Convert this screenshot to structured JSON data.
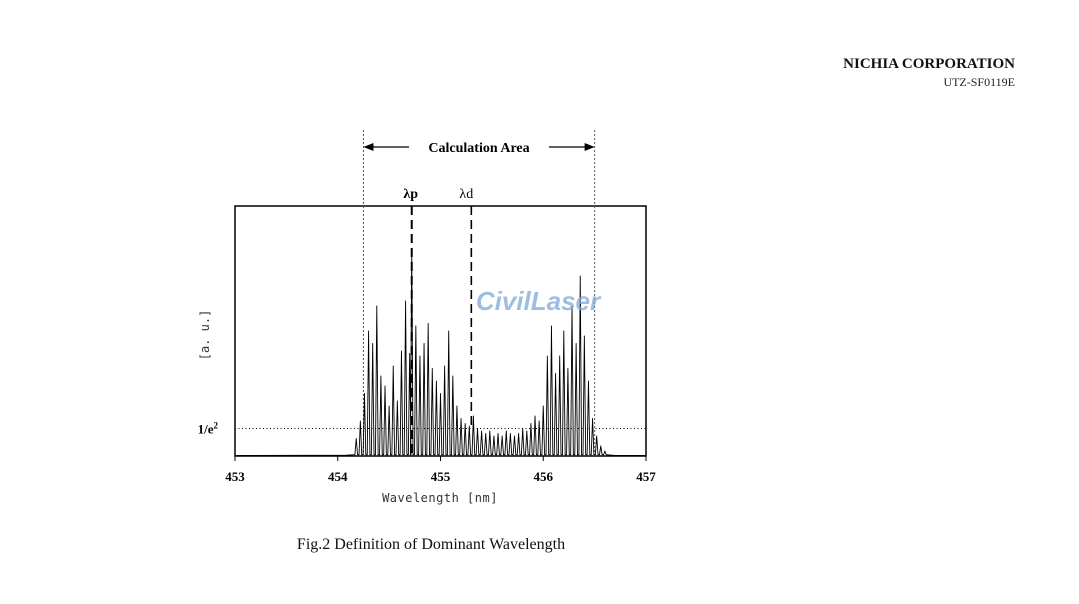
{
  "header": {
    "company": "NICHIA CORPORATION",
    "doc_id": "UTZ-SF0119E"
  },
  "caption": "Fig.2 Definition of Dominant Wavelength",
  "watermark": "CivilLaser",
  "colors": {
    "line": "#000000",
    "watermark": "#7fa8d8"
  },
  "chart_data": {
    "type": "line",
    "title": "",
    "xlabel": "Wavelength [nm]",
    "ylabel": "[a. u.]",
    "xlim": [
      453,
      457
    ],
    "ylim": [
      0,
      1.0
    ],
    "x_ticks": [
      453,
      454,
      455,
      456,
      457
    ],
    "grid": false,
    "annotations": {
      "calculation_area_label": "Calculation Area",
      "calculation_area_range": [
        454.25,
        456.5
      ],
      "lambda_p_label": "λp",
      "lambda_p": 454.72,
      "lambda_d_label": "λd",
      "lambda_d": 455.3,
      "threshold_label": "1/e²",
      "threshold_value": 0.11
    },
    "peaks": [
      {
        "x": 454.18,
        "y": 0.07
      },
      {
        "x": 454.22,
        "y": 0.14
      },
      {
        "x": 454.26,
        "y": 0.25
      },
      {
        "x": 454.3,
        "y": 0.5
      },
      {
        "x": 454.34,
        "y": 0.45
      },
      {
        "x": 454.38,
        "y": 0.6
      },
      {
        "x": 454.42,
        "y": 0.32
      },
      {
        "x": 454.46,
        "y": 0.28
      },
      {
        "x": 454.5,
        "y": 0.2
      },
      {
        "x": 454.54,
        "y": 0.36
      },
      {
        "x": 454.58,
        "y": 0.22
      },
      {
        "x": 454.62,
        "y": 0.42
      },
      {
        "x": 454.66,
        "y": 0.62
      },
      {
        "x": 454.7,
        "y": 0.41
      },
      {
        "x": 454.72,
        "y": 0.82
      },
      {
        "x": 454.76,
        "y": 0.52
      },
      {
        "x": 454.8,
        "y": 0.4
      },
      {
        "x": 454.84,
        "y": 0.45
      },
      {
        "x": 454.88,
        "y": 0.53
      },
      {
        "x": 454.92,
        "y": 0.35
      },
      {
        "x": 454.96,
        "y": 0.3
      },
      {
        "x": 455.0,
        "y": 0.25
      },
      {
        "x": 455.04,
        "y": 0.36
      },
      {
        "x": 455.08,
        "y": 0.5
      },
      {
        "x": 455.12,
        "y": 0.32
      },
      {
        "x": 455.16,
        "y": 0.2
      },
      {
        "x": 455.2,
        "y": 0.15
      },
      {
        "x": 455.24,
        "y": 0.13
      },
      {
        "x": 455.28,
        "y": 0.12
      },
      {
        "x": 455.32,
        "y": 0.16
      },
      {
        "x": 455.36,
        "y": 0.11
      },
      {
        "x": 455.4,
        "y": 0.1
      },
      {
        "x": 455.44,
        "y": 0.09
      },
      {
        "x": 455.48,
        "y": 0.1
      },
      {
        "x": 455.52,
        "y": 0.08
      },
      {
        "x": 455.56,
        "y": 0.09
      },
      {
        "x": 455.6,
        "y": 0.08
      },
      {
        "x": 455.64,
        "y": 0.1
      },
      {
        "x": 455.68,
        "y": 0.09
      },
      {
        "x": 455.72,
        "y": 0.08
      },
      {
        "x": 455.76,
        "y": 0.09
      },
      {
        "x": 455.8,
        "y": 0.11
      },
      {
        "x": 455.84,
        "y": 0.1
      },
      {
        "x": 455.88,
        "y": 0.13
      },
      {
        "x": 455.92,
        "y": 0.16
      },
      {
        "x": 455.96,
        "y": 0.14
      },
      {
        "x": 456.0,
        "y": 0.2
      },
      {
        "x": 456.04,
        "y": 0.4
      },
      {
        "x": 456.08,
        "y": 0.52
      },
      {
        "x": 456.12,
        "y": 0.33
      },
      {
        "x": 456.16,
        "y": 0.4
      },
      {
        "x": 456.2,
        "y": 0.5
      },
      {
        "x": 456.24,
        "y": 0.35
      },
      {
        "x": 456.28,
        "y": 0.6
      },
      {
        "x": 456.32,
        "y": 0.45
      },
      {
        "x": 456.36,
        "y": 0.72
      },
      {
        "x": 456.4,
        "y": 0.48
      },
      {
        "x": 456.44,
        "y": 0.3
      },
      {
        "x": 456.48,
        "y": 0.15
      },
      {
        "x": 456.52,
        "y": 0.08
      },
      {
        "x": 456.56,
        "y": 0.04
      },
      {
        "x": 456.6,
        "y": 0.02
      }
    ]
  }
}
